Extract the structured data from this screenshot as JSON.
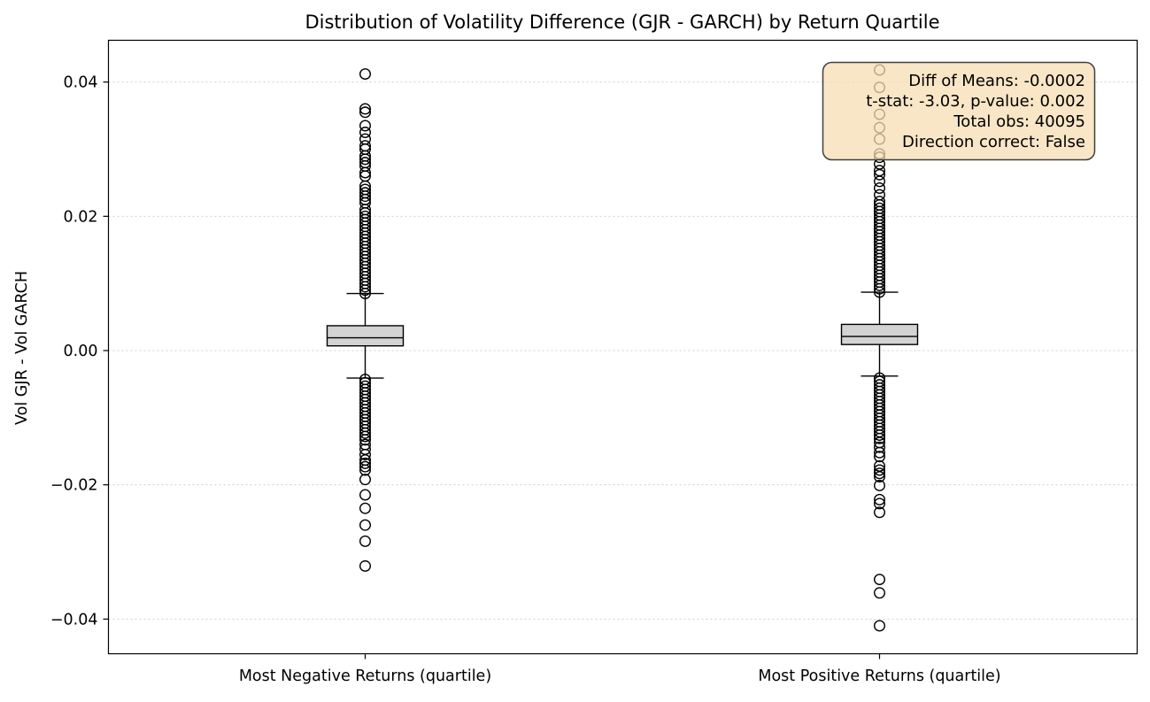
{
  "chart_data": {
    "type": "box",
    "title": "Distribution of Volatility Difference (GJR - GARCH) by Return Quartile",
    "xlabel": "",
    "ylabel": "Vol GJR - Vol GARCH",
    "ylim": [
      -0.045,
      0.046
    ],
    "yticks": [
      {
        "value": 0.04,
        "label": "0.04"
      },
      {
        "value": 0.02,
        "label": "0.02"
      },
      {
        "value": 0.0,
        "label": "0.00"
      },
      {
        "value": -0.02,
        "label": "−0.02"
      },
      {
        "value": -0.04,
        "label": "−0.04"
      }
    ],
    "grid": "y-dotted",
    "categories": [
      "Most Negative Returns (quartile)",
      "Most Positive Returns (quartile)"
    ],
    "boxes": [
      {
        "category": "Most Negative Returns (quartile)",
        "q1": 0.0007,
        "median": 0.0019,
        "q3": 0.0037,
        "whisker_low": -0.0041,
        "whisker_high": 0.0085,
        "outliers_high": [
          0.0085,
          0.009,
          0.0095,
          0.01,
          0.0105,
          0.011,
          0.0115,
          0.012,
          0.0125,
          0.013,
          0.0135,
          0.014,
          0.0145,
          0.015,
          0.0155,
          0.016,
          0.0165,
          0.017,
          0.0175,
          0.018,
          0.0185,
          0.019,
          0.0195,
          0.02,
          0.0205,
          0.021,
          0.022,
          0.0225,
          0.023,
          0.0235,
          0.024,
          0.0245,
          0.026,
          0.0265,
          0.0275,
          0.028,
          0.0285,
          0.029,
          0.03,
          0.0305,
          0.0315,
          0.0325,
          0.0335,
          0.0355,
          0.036,
          0.0412
        ],
        "outliers_low": [
          -0.0043,
          -0.0048,
          -0.0053,
          -0.0058,
          -0.0063,
          -0.0068,
          -0.0073,
          -0.0078,
          -0.0083,
          -0.0088,
          -0.0093,
          -0.0098,
          -0.0103,
          -0.0108,
          -0.0113,
          -0.0118,
          -0.0123,
          -0.0128,
          -0.0133,
          -0.014,
          -0.0147,
          -0.0155,
          -0.0163,
          -0.0168,
          -0.0173,
          -0.0178,
          -0.0192,
          -0.0215,
          -0.0235,
          -0.026,
          -0.0284,
          -0.0321
        ]
      },
      {
        "category": "Most Positive Returns (quartile)",
        "q1": 0.0009,
        "median": 0.0021,
        "q3": 0.0039,
        "whisker_low": -0.0038,
        "whisker_high": 0.0087,
        "outliers_high": [
          0.0087,
          0.0092,
          0.0097,
          0.0102,
          0.0107,
          0.0112,
          0.0117,
          0.0122,
          0.0127,
          0.0132,
          0.0137,
          0.0142,
          0.0147,
          0.0152,
          0.0157,
          0.0162,
          0.0167,
          0.0172,
          0.0177,
          0.0182,
          0.0187,
          0.0192,
          0.0197,
          0.0202,
          0.0207,
          0.0212,
          0.0217,
          0.0222,
          0.0232,
          0.0242,
          0.0252,
          0.0262,
          0.0268,
          0.0278,
          0.0288,
          0.0293,
          0.0315,
          0.0332,
          0.0352,
          0.0392,
          0.0418
        ],
        "outliers_low": [
          -0.0041,
          -0.0046,
          -0.0051,
          -0.0056,
          -0.0061,
          -0.0066,
          -0.0071,
          -0.0076,
          -0.0081,
          -0.0086,
          -0.0091,
          -0.0096,
          -0.0101,
          -0.0106,
          -0.0111,
          -0.0116,
          -0.0121,
          -0.0126,
          -0.0131,
          -0.0137,
          -0.0144,
          -0.0152,
          -0.0158,
          -0.0172,
          -0.0178,
          -0.0183,
          -0.0188,
          -0.0201,
          -0.0222,
          -0.0228,
          -0.0241,
          -0.0341,
          -0.0361,
          -0.041
        ]
      }
    ],
    "annotation": {
      "position": "top-right",
      "lines": [
        "Diff of Means: -0.0002",
        "t-stat: -3.03, p-value: 0.002",
        "Total obs: 40095",
        "Direction correct: False"
      ]
    },
    "colors": {
      "box_fill": "#d3d3d3",
      "median": "#000000",
      "annotation_fill": "#f5deb3",
      "annotation_edge": "#404040",
      "grid": "#cfcfcf"
    }
  }
}
